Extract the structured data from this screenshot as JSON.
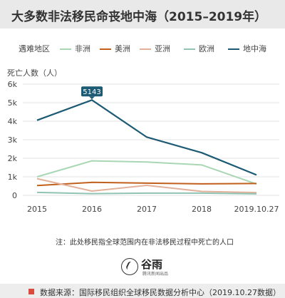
{
  "title": "大多数非法移民命丧地中海（2015–2019年）",
  "legend_title": "遇难地区",
  "note": "注：此处移民指全球范围内在非法移民过程中死亡的人口",
  "logo": {
    "text": "谷雨",
    "subtext": "腾讯新闻出品"
  },
  "source": "数据来源：国际移民组织全球移民数据分析中心（2019.10.27数据）",
  "colors": {
    "grid": "#e3e3e3",
    "axis_text": "#444444",
    "source_mark": "#d94b3f",
    "annotation_bg": "#1d5a73"
  },
  "chart_data": {
    "type": "line",
    "title": "大多数非法移民命丧地中海（2015–2019年）",
    "xlabel": "",
    "ylabel": "死亡人数（人）",
    "categories": [
      "2015",
      "2016",
      "2017",
      "2018",
      "2019.10.27"
    ],
    "ylim": [
      0,
      6000
    ],
    "yticks": [
      0,
      1000,
      2000,
      3000,
      4000,
      5000,
      6000
    ],
    "ytick_labels": [
      "0",
      "1k",
      "2k",
      "3k",
      "4k",
      "5k",
      "6k"
    ],
    "grid": true,
    "legend_position": "top",
    "series": [
      {
        "name": "非洲",
        "color": "#a9d7b4",
        "values": [
          1000,
          1860,
          1800,
          1640,
          610
        ]
      },
      {
        "name": "美洲",
        "color": "#c0601c",
        "values": [
          530,
          700,
          660,
          620,
          640
        ]
      },
      {
        "name": "亚洲",
        "color": "#e2b19b",
        "values": [
          900,
          230,
          540,
          210,
          150
        ]
      },
      {
        "name": "欧洲",
        "color": "#8fc4b4",
        "values": [
          160,
          90,
          120,
          120,
          80
        ]
      },
      {
        "name": "地中海",
        "color": "#1d5a73",
        "values": [
          4050,
          5143,
          3140,
          2300,
          1100
        ]
      }
    ],
    "annotations": [
      {
        "series": "地中海",
        "category": "2016",
        "text": "5143"
      }
    ]
  }
}
